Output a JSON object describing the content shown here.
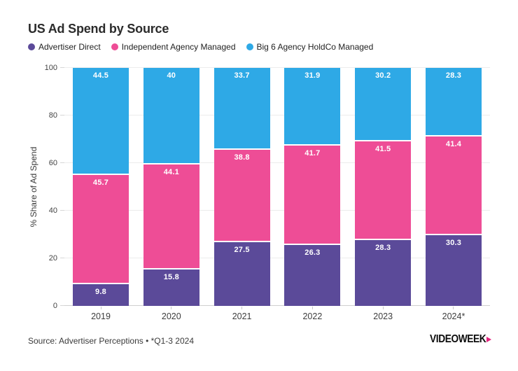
{
  "title": "US Ad Spend by Source",
  "legend": [
    {
      "label": "Advertiser Direct",
      "color": "#5B4A99"
    },
    {
      "label": "Independent Agency Managed",
      "color": "#EE4D96"
    },
    {
      "label": "Big 6 Agency HoldCo Managed",
      "color": "#2EA9E6"
    }
  ],
  "chart_data": {
    "type": "bar",
    "stacked": true,
    "title": "US Ad Spend by Source",
    "xlabel": "",
    "ylabel": "% Share of Ad Spend",
    "ylim": [
      0,
      100
    ],
    "yticks": [
      0,
      20,
      40,
      60,
      80,
      100
    ],
    "grid": true,
    "legend_position": "top",
    "categories": [
      "2019",
      "2020",
      "2021",
      "2022",
      "2023",
      "2024*"
    ],
    "series": [
      {
        "name": "Advertiser Direct",
        "color": "#5B4A99",
        "values": [
          9.8,
          15.8,
          27.5,
          26.3,
          28.3,
          30.3
        ]
      },
      {
        "name": "Independent Agency Managed",
        "color": "#EE4D96",
        "values": [
          45.7,
          44.1,
          38.8,
          41.7,
          41.5,
          41.4
        ]
      },
      {
        "name": "Big 6 Agency HoldCo Managed",
        "color": "#2EA9E6",
        "values": [
          44.5,
          40,
          33.7,
          31.9,
          30.2,
          28.3
        ]
      }
    ]
  },
  "footer": {
    "source": "Source: Advertiser Perceptions • *Q1-3 2024",
    "logo_text": "VIDEOWEEK",
    "logo_arrow_color": "#E5257E"
  }
}
